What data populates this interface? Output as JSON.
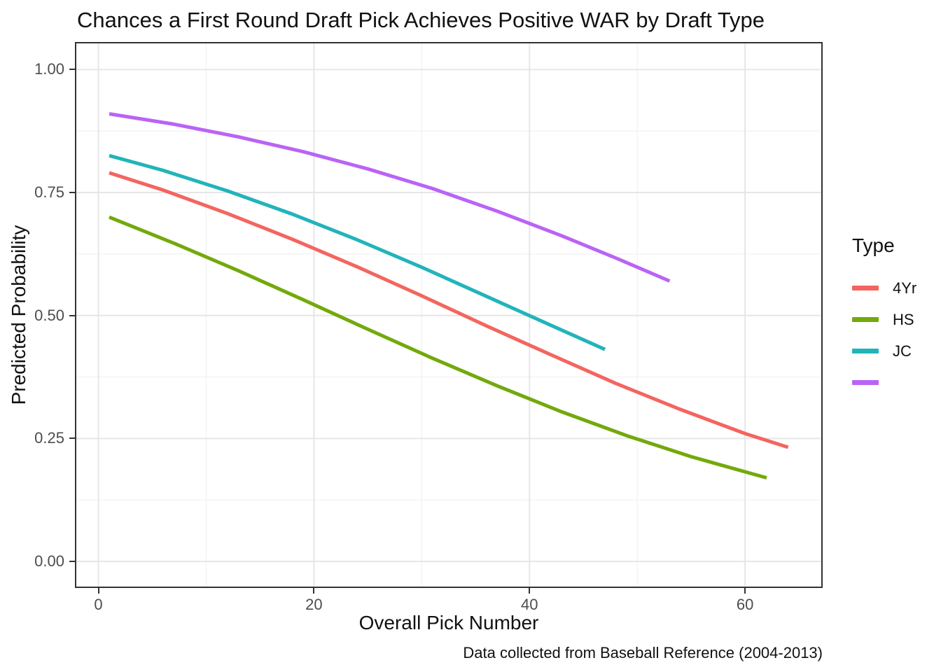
{
  "title": "Chances a First Round Draft Pick Achieves Positive WAR by Draft Type",
  "caption": "Data collected from Baseball Reference (2004-2013)",
  "legend": {
    "title": "Type",
    "items": [
      {
        "label": "4Yr",
        "color": "#F4655F"
      },
      {
        "label": "HS",
        "color": "#73A90B"
      },
      {
        "label": "JC",
        "color": "#21B4BA"
      },
      {
        "label": "",
        "color": "#BA63F6"
      }
    ]
  },
  "colors": {
    "grid_major": "#E6E6E6",
    "grid_minor": "#F2F2F2",
    "panel_border": "#333333",
    "tick_mark": "#333333",
    "axis_text": "#4d4d4d"
  },
  "chart_data": {
    "type": "line",
    "title": "Chances a First Round Draft Pick Achieves Positive WAR by Draft Type",
    "xlabel": "Overall Pick Number",
    "ylabel": "Predicted Probability",
    "caption": "Data collected from Baseball Reference (2004-2013)",
    "x_range": [
      -2.18,
      67.2
    ],
    "y_range": [
      -0.054,
      1.056
    ],
    "x_breaks": [
      0,
      20,
      40,
      60
    ],
    "x_tick_labels": [
      "0",
      "20",
      "40",
      "60"
    ],
    "x_minor_breaks": [
      10,
      30,
      50
    ],
    "y_breaks": [
      0.0,
      0.25,
      0.5,
      0.75,
      1.0
    ],
    "y_tick_labels": [
      "0.00",
      "0.25",
      "0.50",
      "0.75",
      "1.00"
    ],
    "y_minor_breaks": [
      0.125,
      0.375,
      0.625,
      0.875
    ],
    "grid": true,
    "legend_position": "right",
    "legend_title": "Type",
    "series": [
      {
        "name": "4Yr",
        "color": "#F4655F",
        "points": [
          [
            1,
            0.79
          ],
          [
            6,
            0.755
          ],
          [
            12,
            0.707
          ],
          [
            18,
            0.655
          ],
          [
            24,
            0.599
          ],
          [
            30,
            0.54
          ],
          [
            36,
            0.479
          ],
          [
            42,
            0.42
          ],
          [
            48,
            0.362
          ],
          [
            54,
            0.309
          ],
          [
            60,
            0.26
          ],
          [
            64,
            0.232
          ]
        ]
      },
      {
        "name": "HS",
        "color": "#73A90B",
        "points": [
          [
            1,
            0.7
          ],
          [
            7,
            0.647
          ],
          [
            13,
            0.591
          ],
          [
            19,
            0.532
          ],
          [
            25,
            0.472
          ],
          [
            31,
            0.413
          ],
          [
            37,
            0.357
          ],
          [
            43,
            0.304
          ],
          [
            49,
            0.256
          ],
          [
            55,
            0.213
          ],
          [
            62,
            0.17
          ]
        ]
      },
      {
        "name": "JC",
        "color": "#21B4BA",
        "points": [
          [
            1,
            0.825
          ],
          [
            6,
            0.795
          ],
          [
            12,
            0.753
          ],
          [
            18,
            0.706
          ],
          [
            24,
            0.654
          ],
          [
            30,
            0.598
          ],
          [
            36,
            0.539
          ],
          [
            42,
            0.48
          ],
          [
            47,
            0.431
          ]
        ]
      },
      {
        "name": "",
        "color": "#BA63F6",
        "points": [
          [
            1,
            0.91
          ],
          [
            7,
            0.889
          ],
          [
            13,
            0.863
          ],
          [
            19,
            0.833
          ],
          [
            25,
            0.798
          ],
          [
            31,
            0.758
          ],
          [
            37,
            0.712
          ],
          [
            43,
            0.662
          ],
          [
            48,
            0.617
          ],
          [
            53,
            0.57
          ]
        ]
      }
    ]
  }
}
